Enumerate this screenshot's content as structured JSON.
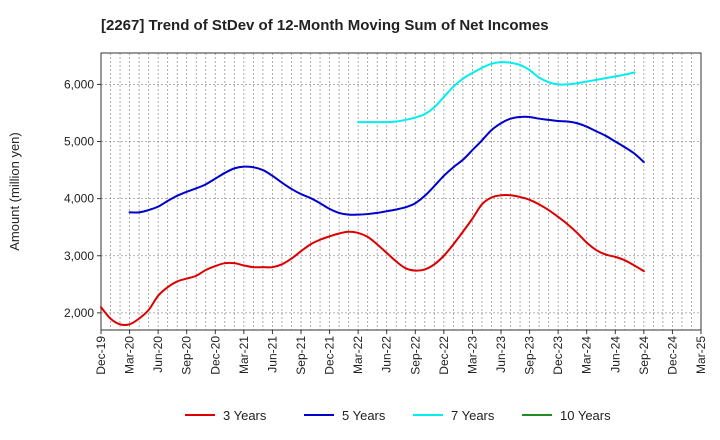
{
  "chart_data": {
    "type": "line",
    "title": "[2267]  Trend of StDev of 12-Month Moving Sum of Net Incomes",
    "xlabel": "",
    "ylabel": "Amount (million yen)",
    "ylim": [
      1700,
      6550
    ],
    "yticks": [
      2000,
      3000,
      4000,
      5000,
      6000
    ],
    "ytick_labels": [
      "2,000",
      "3,000",
      "4,000",
      "5,000",
      "6,000"
    ],
    "x_start": "Dec-19",
    "x_end": "Mar-25",
    "xtick_labels": [
      "Dec-19",
      "Mar-20",
      "Jun-20",
      "Sep-20",
      "Dec-20",
      "Mar-21",
      "Jun-21",
      "Sep-21",
      "Dec-21",
      "Mar-22",
      "Jun-22",
      "Sep-22",
      "Dec-22",
      "Mar-23",
      "Jun-23",
      "Sep-23",
      "Dec-23",
      "Mar-24",
      "Jun-24",
      "Sep-24",
      "Dec-24",
      "Mar-25"
    ],
    "grid": true,
    "legend_position": "bottom",
    "series": [
      {
        "name": "3 Years",
        "color": "#dd0000",
        "start": "Dec-19",
        "values": [
          2100,
          1900,
          1800,
          1800,
          1900,
          2050,
          2300,
          2450,
          2550,
          2600,
          2650,
          2750,
          2820,
          2870,
          2870,
          2830,
          2800,
          2800,
          2800,
          2850,
          2950,
          3080,
          3200,
          3280,
          3340,
          3390,
          3420,
          3400,
          3330,
          3200,
          3050,
          2900,
          2780,
          2740,
          2760,
          2850,
          3000,
          3200,
          3420,
          3650,
          3900,
          4020,
          4060,
          4060,
          4030,
          3980,
          3900,
          3800,
          3680,
          3550,
          3400,
          3230,
          3100,
          3020,
          2980,
          2920,
          2830,
          2730
        ]
      },
      {
        "name": "5 Years",
        "color": "#0000cc",
        "start": "Mar-20",
        "values": [
          3760,
          3760,
          3800,
          3860,
          3960,
          4050,
          4120,
          4180,
          4250,
          4350,
          4450,
          4530,
          4560,
          4550,
          4500,
          4400,
          4280,
          4170,
          4080,
          4010,
          3920,
          3820,
          3750,
          3720,
          3720,
          3730,
          3750,
          3780,
          3810,
          3850,
          3920,
          4050,
          4220,
          4400,
          4550,
          4680,
          4850,
          5020,
          5200,
          5320,
          5400,
          5430,
          5430,
          5400,
          5380,
          5360,
          5350,
          5320,
          5260,
          5180,
          5100,
          5000,
          4900,
          4790,
          4640
        ]
      },
      {
        "name": "7 Years",
        "color": "#00eeee",
        "start": "Mar-22",
        "values": [
          5340,
          5340,
          5340,
          5340,
          5350,
          5380,
          5420,
          5480,
          5600,
          5780,
          5960,
          6100,
          6200,
          6290,
          6360,
          6390,
          6380,
          6340,
          6250,
          6120,
          6040,
          6000,
          6000,
          6020,
          6050,
          6080,
          6110,
          6140,
          6170,
          6210
        ]
      },
      {
        "name": "10 Years",
        "color": "#228b22",
        "start": "",
        "values": []
      }
    ]
  }
}
